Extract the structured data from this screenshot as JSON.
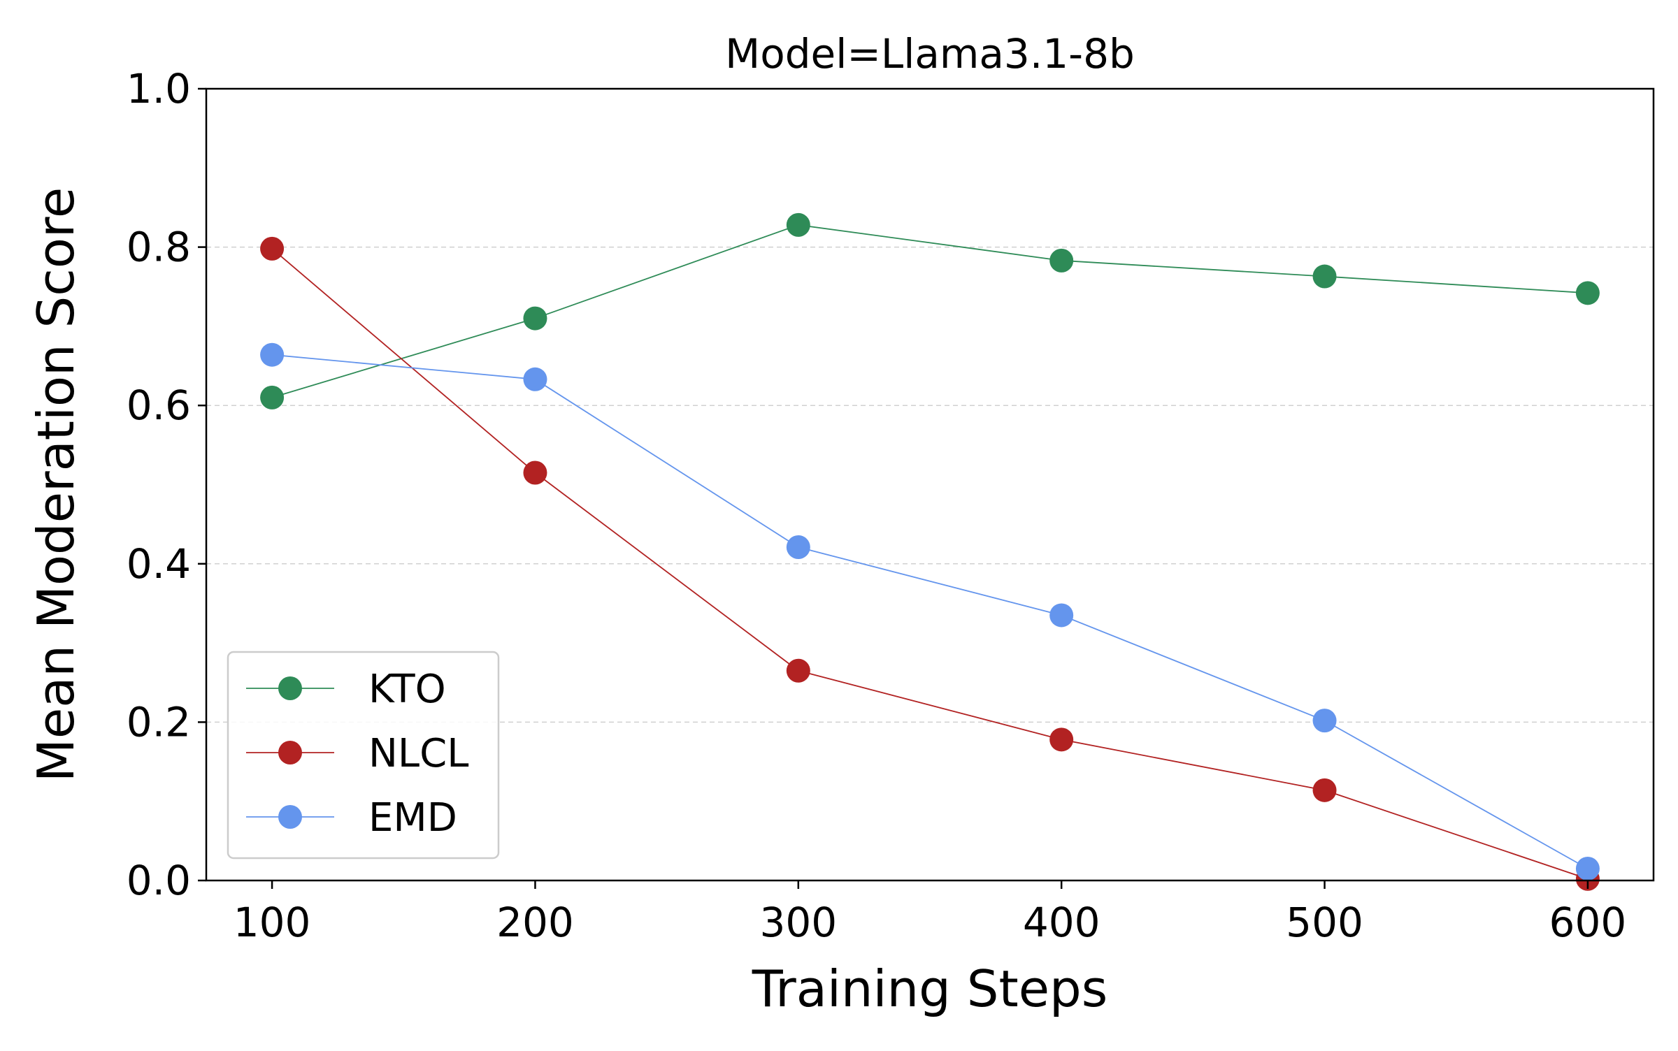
{
  "chart_data": {
    "type": "line",
    "title": "Model=Llama3.1-8b",
    "xlabel": "Training Steps",
    "ylabel": "Mean Moderation Score",
    "x": [
      100,
      200,
      300,
      400,
      500,
      600
    ],
    "xlim": [
      75,
      625
    ],
    "ylim": [
      0.0,
      1.0
    ],
    "xticks": [
      100,
      200,
      300,
      400,
      500,
      600
    ],
    "xtick_labels": [
      "100",
      "200",
      "300",
      "400",
      "500",
      "600"
    ],
    "yticks": [
      0.0,
      0.2,
      0.4,
      0.6,
      0.8,
      1.0
    ],
    "ytick_labels": [
      "0.0",
      "0.2",
      "0.4",
      "0.6",
      "0.8",
      "1.0"
    ],
    "grid": "horizontal dashed",
    "legend_position": "bottom-left",
    "series": [
      {
        "name": "KTO",
        "color": "#2e8b57",
        "values": [
          0.61,
          0.71,
          0.828,
          0.783,
          0.763,
          0.742
        ]
      },
      {
        "name": "NLCL",
        "color": "#b22222",
        "values": [
          0.798,
          0.515,
          0.265,
          0.178,
          0.114,
          0.002
        ]
      },
      {
        "name": "EMD",
        "color": "#6495ed",
        "values": [
          0.664,
          0.633,
          0.421,
          0.335,
          0.202,
          0.015
        ]
      }
    ]
  }
}
